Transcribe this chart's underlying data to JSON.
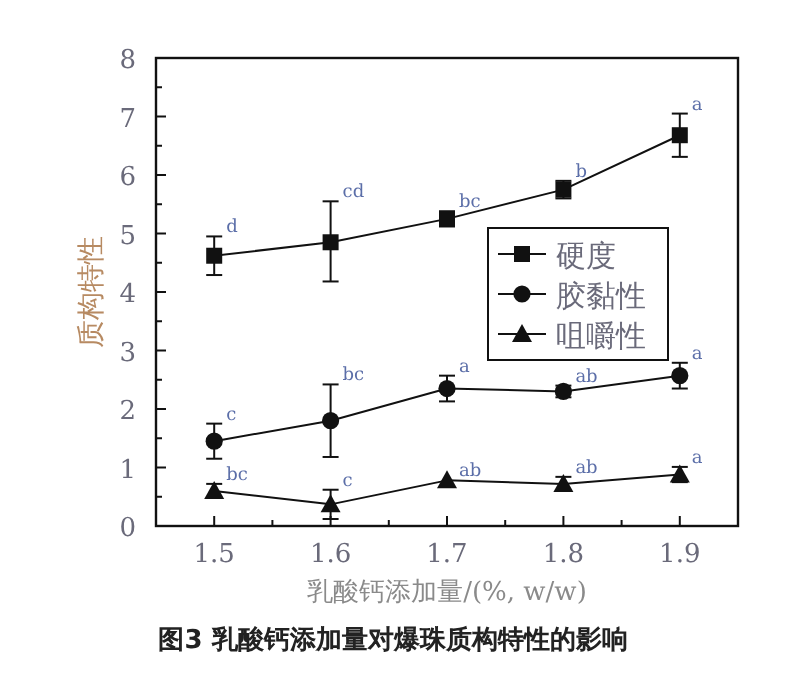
{
  "chart_data": {
    "type": "line",
    "title": "图3  乳酸钙添加量对爆珠质构特性的影响",
    "xlabel": "乳酸钙添加量/(%, w/w)",
    "ylabel": "质构特性",
    "x": [
      1.5,
      1.6,
      1.7,
      1.8,
      1.9
    ],
    "xlim": [
      1.45,
      1.95
    ],
    "xticks": [
      1.5,
      {
        "value": 1.55,
        "label": null
      },
      1.6,
      {
        "value": 1.65,
        "label": null
      },
      1.7,
      {
        "value": 1.75,
        "label": null
      },
      1.8,
      {
        "value": 1.85,
        "label": null
      },
      1.9
    ],
    "ylim": [
      0,
      8
    ],
    "yticks": [
      0,
      {
        "value": 0.5,
        "label": null
      },
      1,
      {
        "value": 1.5,
        "label": null
      },
      2,
      {
        "value": 2.5,
        "label": null
      },
      3,
      {
        "value": 3.5,
        "label": null
      },
      4,
      {
        "value": 4.5,
        "label": null
      },
      5,
      {
        "value": 5.5,
        "label": null
      },
      6,
      {
        "value": 6.5,
        "label": null
      },
      7,
      {
        "value": 7.5,
        "label": null
      },
      8
    ],
    "legend": "right",
    "grid": false,
    "line_style": "solid",
    "series": [
      {
        "name": "硬度",
        "color": "#111111",
        "marker": "square",
        "values": [
          4.62,
          4.85,
          5.25,
          5.75,
          6.68
        ],
        "errors": [
          0.33,
          [
            4.18,
            5.55
          ],
          0.13,
          0.15,
          0.37
        ]
      },
      {
        "name": "胶黏性",
        "color": "#111111",
        "marker": "circle",
        "values": [
          1.45,
          1.8,
          2.35,
          2.3,
          2.57
        ],
        "errors": [
          0.3,
          [
            1.18,
            2.42
          ],
          0.22,
          0.1,
          0.22
        ]
      },
      {
        "name": "咀嚼性",
        "color": "#111111",
        "marker": "triangle",
        "values": [
          0.6,
          0.37,
          0.78,
          0.72,
          0.88
        ],
        "errors": [
          0.12,
          0.25,
          null,
          0.12,
          0.13
        ]
      }
    ],
    "annotations": [
      {
        "text": "d",
        "x": 1.5,
        "y": 4.95
      },
      {
        "text": "cd",
        "x": 1.6,
        "y": 5.55
      },
      {
        "text": "bc",
        "x": 1.7,
        "y": 5.38
      },
      {
        "text": "b",
        "x": 1.8,
        "y": 5.9
      },
      {
        "text": "a",
        "x": 1.9,
        "y": 7.05
      },
      {
        "text": "c",
        "x": 1.5,
        "y": 1.75
      },
      {
        "text": "bc",
        "x": 1.6,
        "y": 2.42
      },
      {
        "text": "a",
        "x": 1.7,
        "y": 2.57
      },
      {
        "text": "ab",
        "x": 1.8,
        "y": 2.4
      },
      {
        "text": "a",
        "x": 1.9,
        "y": 2.79
      },
      {
        "text": "bc",
        "x": 1.5,
        "y": 0.72
      },
      {
        "text": "c",
        "x": 1.6,
        "y": 0.62
      },
      {
        "text": "ab",
        "x": 1.7,
        "y": 0.78
      },
      {
        "text": "ab",
        "x": 1.8,
        "y": 0.84
      },
      {
        "text": "a",
        "x": 1.9,
        "y": 1.01
      }
    ]
  }
}
